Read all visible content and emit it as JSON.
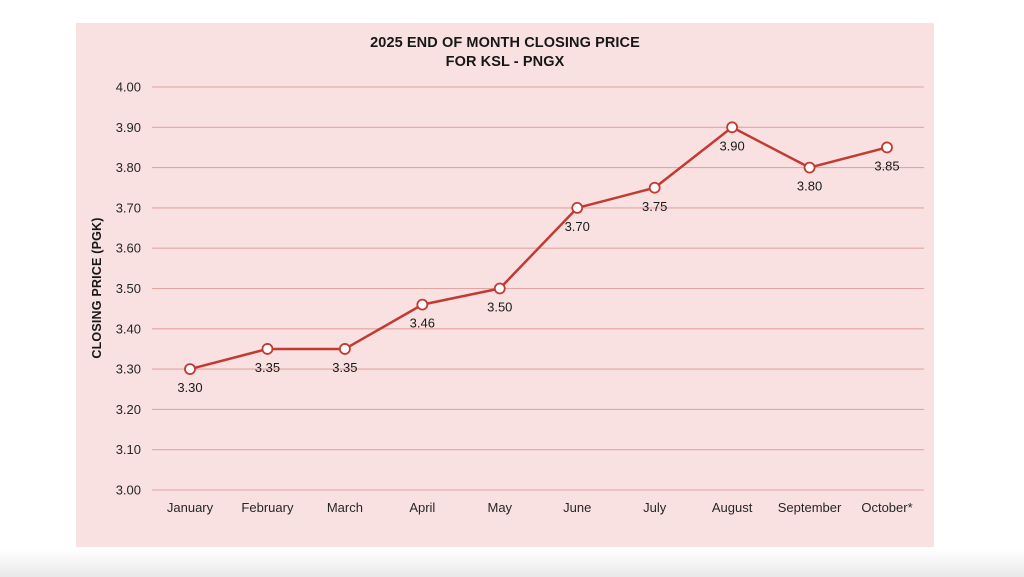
{
  "page": {
    "background": "#ffffff",
    "bottom_fade_color": "#e9e9e9"
  },
  "panel": {
    "background": "#f9e1e1"
  },
  "chart_data": {
    "type": "line",
    "title_line1": "2025 END OF MONTH CLOSING PRICE",
    "title_line2": "FOR KSL - PNGX",
    "ylabel": "CLOSING PRICE (PGK)",
    "xlabel": "",
    "categories": [
      "January",
      "February",
      "March",
      "April",
      "May",
      "June",
      "July",
      "August",
      "September",
      "October*"
    ],
    "values": [
      3.3,
      3.35,
      3.35,
      3.46,
      3.5,
      3.7,
      3.75,
      3.9,
      3.8,
      3.85
    ],
    "data_labels": [
      "3.30",
      "3.35",
      "3.35",
      "3.46",
      "3.50",
      "3.70",
      "3.75",
      "3.90",
      "3.80",
      "3.85"
    ],
    "ylim": [
      3.0,
      4.0
    ],
    "ytick_step": 0.1,
    "ytick_labels": [
      "3.00",
      "3.10",
      "3.20",
      "3.30",
      "3.40",
      "3.50",
      "3.60",
      "3.70",
      "3.80",
      "3.90",
      "4.00"
    ],
    "grid": "horizontal",
    "legend": "none",
    "colors": {
      "line": "#c23a32",
      "marker_fill": "#ffffff",
      "marker_stroke": "#c23a32",
      "gridline": "#e5a4a2",
      "tick_text": "#262626",
      "label_text": "#1a1a1a",
      "title_text": "#171717"
    }
  }
}
